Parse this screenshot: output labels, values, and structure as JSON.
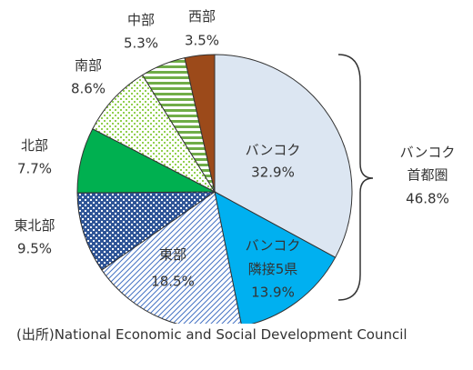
{
  "chart_data": {
    "type": "pie",
    "categories": [
      "バンコク",
      "バンコク隣接5県",
      "東部",
      "東北部",
      "北部",
      "南部",
      "中部",
      "西部"
    ],
    "values": [
      32.9,
      13.9,
      18.5,
      9.5,
      7.7,
      8.6,
      5.3,
      3.5
    ],
    "value_labels": [
      "32.9%",
      "13.9%",
      "18.5%",
      "9.5%",
      "7.7%",
      "8.6%",
      "5.3%",
      "3.5%"
    ],
    "colors": [
      "#dce6f2",
      "#00b0f0",
      "#4472c4",
      "#2f5597",
      "#00b050",
      "#92d050",
      "#70ad47",
      "#9c4a1a"
    ],
    "annotation": [
      "バンコク",
      "首都圏",
      "46.8%"
    ],
    "source": "(出所)National Economic and Social Development Council"
  }
}
